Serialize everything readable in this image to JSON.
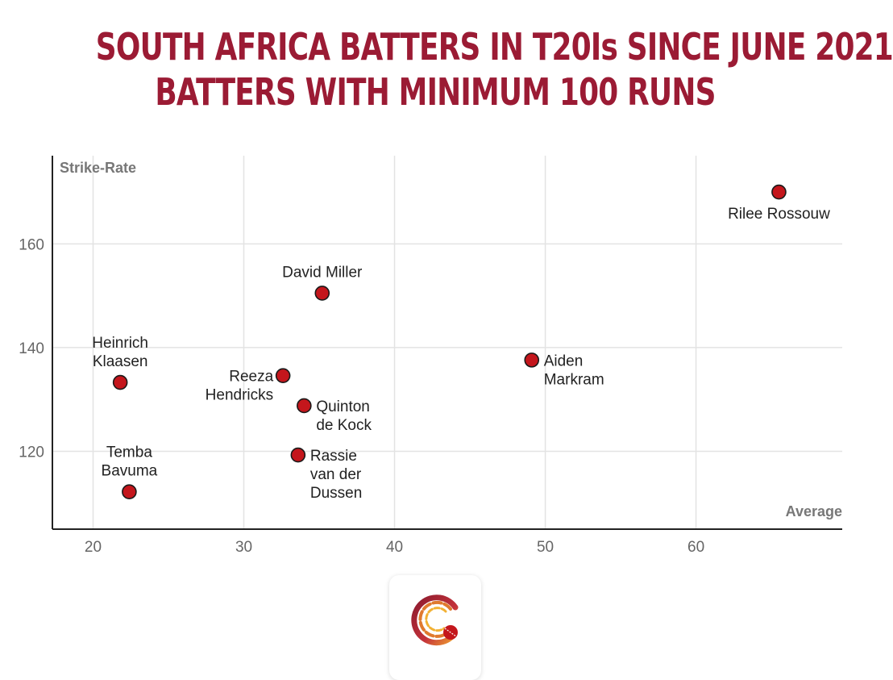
{
  "title": {
    "line1": "SOUTH AFRICA BATTERS IN T20Is SINCE JUNE 2021",
    "line2": "BATTERS WITH MINIMUM 100 RUNS"
  },
  "chart_data": {
    "type": "scatter",
    "title": "SOUTH AFRICA BATTERS IN T20Is SINCE JUNE 2021 / BATTERS WITH MINIMUM 100 RUNS",
    "xlabel": "Average",
    "ylabel": "Strike-Rate",
    "xlim": [
      17.3,
      69.7
    ],
    "ylim": [
      105,
      177
    ],
    "xticks": [
      20,
      30,
      40,
      50,
      60
    ],
    "yticks": [
      120,
      140,
      160
    ],
    "grid": true,
    "marker_color": "#c4161c",
    "points": [
      {
        "name": "Rilee Rossouw",
        "label_lines": [
          "Rilee Rossouw"
        ],
        "label_pos": "below",
        "x": 65.5,
        "y": 170.0
      },
      {
        "name": "David Miller",
        "label_lines": [
          "David Miller"
        ],
        "label_pos": "above",
        "x": 35.2,
        "y": 150.5
      },
      {
        "name": "Aiden Markram",
        "label_lines": [
          "Aiden",
          "Markram"
        ],
        "label_pos": "right",
        "x": 49.1,
        "y": 137.6
      },
      {
        "name": "Heinrich Klaasen",
        "label_lines": [
          "Heinrich",
          "Klaasen"
        ],
        "label_pos": "above",
        "x": 21.8,
        "y": 133.3
      },
      {
        "name": "Reeza Hendricks",
        "label_lines": [
          "Reeza",
          "Hendricks"
        ],
        "label_pos": "left",
        "x": 32.6,
        "y": 134.6
      },
      {
        "name": "Quinton de Kock",
        "label_lines": [
          "Quinton",
          "de Kock"
        ],
        "label_pos": "right",
        "x": 34.0,
        "y": 128.8
      },
      {
        "name": "Rassie van der Dussen",
        "label_lines": [
          "Rassie",
          "van der",
          "Dussen"
        ],
        "label_pos": "right",
        "x": 33.6,
        "y": 119.3
      },
      {
        "name": "Temba Bavuma",
        "label_lines": [
          "Temba",
          "Bavuma"
        ],
        "label_pos": "above",
        "x": 22.4,
        "y": 112.2
      }
    ]
  },
  "logo": {
    "icon": "cricket-ball-logo-icon"
  }
}
